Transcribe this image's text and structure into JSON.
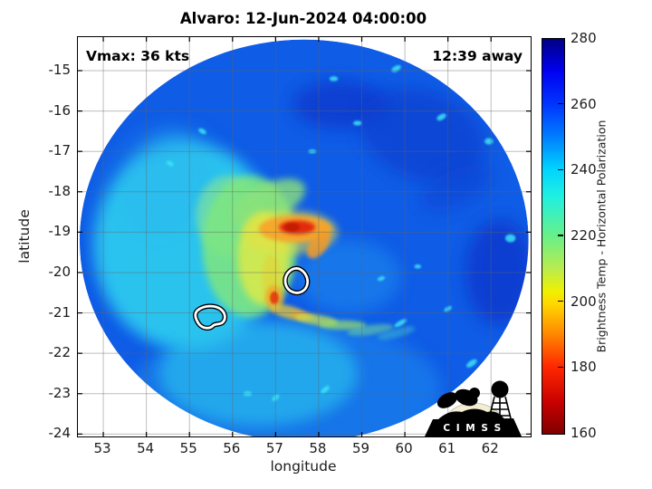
{
  "figure": {
    "title": "Alvaro: 12-Jun-2024 04:00:00"
  },
  "annotations": {
    "vmax": "Vmax: 36 kts",
    "eta": "12:39 away"
  },
  "logo": {
    "text": "C I M S S"
  },
  "chart_data": {
    "type": "heatmap",
    "title": "Alvaro: 12-Jun-2024 04:00:00",
    "xlabel": "longitude",
    "ylabel": "latitude",
    "xlim": [
      52.41,
      62.92
    ],
    "ylim": [
      -24.06,
      -14.17
    ],
    "xticks": [
      53,
      54,
      55,
      56,
      57,
      58,
      59,
      60,
      61,
      62
    ],
    "yticks": [
      -15,
      -16,
      -17,
      -18,
      -19,
      -20,
      -21,
      -22,
      -23,
      -24
    ],
    "grid": true,
    "colorbar": {
      "label": "Brightness Temp - Horizontal Polarization",
      "min": 160,
      "max": 280,
      "ticks": [
        160,
        180,
        200,
        220,
        240,
        260,
        280
      ],
      "stops": [
        {
          "pos": 0.0,
          "color": "#000083"
        },
        {
          "pos": 0.08,
          "color": "#0000f0"
        },
        {
          "pos": 0.17,
          "color": "#0038ff"
        },
        {
          "pos": 0.25,
          "color": "#0080ff"
        },
        {
          "pos": 0.33,
          "color": "#00d4ff"
        },
        {
          "pos": 0.4,
          "color": "#20f0e0"
        },
        {
          "pos": 0.5,
          "color": "#68f088"
        },
        {
          "pos": 0.58,
          "color": "#b8ec50"
        },
        {
          "pos": 0.64,
          "color": "#f0f000"
        },
        {
          "pos": 0.67,
          "color": "#ffd800"
        },
        {
          "pos": 0.74,
          "color": "#ff9000"
        },
        {
          "pos": 0.83,
          "color": "#ff2800"
        },
        {
          "pos": 0.92,
          "color": "#c80000"
        },
        {
          "pos": 1.0,
          "color": "#800000"
        }
      ]
    },
    "swath": {
      "center_lon": 57.66,
      "center_lat": -19.21,
      "radius_lon_deg": 5.21,
      "radius_lat_deg": 4.98,
      "base_color": "#0f5ce6"
    },
    "features": [
      {
        "name": "light-blue-bottom",
        "lon": 57.25,
        "lat": -22.9,
        "rx": 3.6,
        "ry": 1.7,
        "rot": 0,
        "color": "#1e86ec",
        "opacity": 0.6,
        "blur": 8
      },
      {
        "name": "light-blue-left",
        "lon": 54.6,
        "lat": -19.0,
        "rx": 1.9,
        "ry": 2.7,
        "rot": 0,
        "color": "#1d80ea",
        "opacity": 0.5,
        "blur": 8
      },
      {
        "name": "light-blue-right-of-center",
        "lon": 58.7,
        "lat": -20.1,
        "rx": 1.2,
        "ry": 0.9,
        "rot": 0,
        "color": "#1e8cee",
        "opacity": 0.55,
        "blur": 8
      },
      {
        "name": "navy-top-center",
        "lon": 58.5,
        "lat": -15.85,
        "rx": 1.1,
        "ry": 0.6,
        "rot": 0,
        "color": "#0836ca",
        "opacity": 0.7,
        "blur": 8
      },
      {
        "name": "navy-top-right",
        "lon": 60.4,
        "lat": -16.6,
        "rx": 1.5,
        "ry": 1.1,
        "rot": 20,
        "color": "#0a3cce",
        "opacity": 0.65,
        "blur": 8
      },
      {
        "name": "navy-right-edge",
        "lon": 62.2,
        "lat": -20.0,
        "rx": 0.8,
        "ry": 1.3,
        "rot": 0,
        "color": "#0836ca",
        "opacity": 0.75,
        "blur": 8
      },
      {
        "name": "navy-streak-ne",
        "lon": 61.2,
        "lat": -17.9,
        "rx": 0.9,
        "ry": 0.45,
        "rot": -25,
        "color": "#0b40d0",
        "opacity": 0.5,
        "blur": 8
      },
      {
        "name": "cyan-mass-west",
        "lon": 54.95,
        "lat": -19.35,
        "rx": 2.15,
        "ry": 2.55,
        "rot": 0,
        "color": "#2fd2f0",
        "opacity": 0.85,
        "blur": 8
      },
      {
        "name": "cyan-south",
        "lon": 56.6,
        "lat": -22.5,
        "rx": 2.3,
        "ry": 1.3,
        "rot": 0,
        "color": "#2cc2ee",
        "opacity": 0.65,
        "blur": 8
      },
      {
        "name": "cyan-north-arm",
        "lon": 54.45,
        "lat": -17.8,
        "rx": 0.95,
        "ry": 1.3,
        "rot": 25,
        "color": "#2ab8ee",
        "opacity": 0.5,
        "blur": 8
      },
      {
        "name": "pale-green-nw",
        "lon": 55.9,
        "lat": -18.6,
        "rx": 0.75,
        "ry": 1.0,
        "rot": 0,
        "color": "#8fe88f",
        "opacity": 0.6,
        "blur": 4
      },
      {
        "name": "green-comma",
        "lon": 56.4,
        "lat": -19.35,
        "rx": 1.1,
        "ry": 1.75,
        "rot": 0,
        "color": "#7fe67e",
        "opacity": 0.85,
        "blur": 4
      },
      {
        "name": "green-comma-top-arm",
        "lon": 56.85,
        "lat": -18.25,
        "rx": 0.9,
        "ry": 0.45,
        "rot": -25,
        "color": "#8ce27a",
        "opacity": 0.8,
        "blur": 4
      },
      {
        "name": "yellow-comma-core",
        "lon": 56.72,
        "lat": -19.65,
        "rx": 0.6,
        "ry": 1.15,
        "rot": 0,
        "color": "#dcea48",
        "opacity": 0.85,
        "blur": 4
      },
      {
        "name": "yellow-streak-south",
        "lon": 56.9,
        "lat": -20.1,
        "rx": 0.22,
        "ry": 0.55,
        "rot": 0,
        "color": "#ddd83e",
        "opacity": 0.8,
        "blur": 2
      },
      {
        "name": "yellow-halo-core",
        "lon": 57.35,
        "lat": -19.0,
        "rx": 1.1,
        "ry": 0.55,
        "rot": 0,
        "color": "#e8e040",
        "opacity": 0.55,
        "blur": 4
      },
      {
        "name": "orange-band",
        "lon": 57.46,
        "lat": -18.92,
        "rx": 0.85,
        "ry": 0.34,
        "rot": 0,
        "color": "#f7a62b",
        "opacity": 0.95,
        "blur": 2
      },
      {
        "name": "red-core",
        "lon": 57.5,
        "lat": -18.88,
        "rx": 0.42,
        "ry": 0.17,
        "rot": 0,
        "color": "#e3290e",
        "opacity": 1,
        "blur": 2
      },
      {
        "name": "red-core-dark",
        "lon": 57.38,
        "lat": -18.88,
        "rx": 0.18,
        "ry": 0.11,
        "rot": 0,
        "color": "#c21f00",
        "opacity": 0.9,
        "blur": 1
      },
      {
        "name": "orange-tail-east",
        "lon": 58.0,
        "lat": -19.3,
        "rx": 0.2,
        "ry": 0.4,
        "rot": 35,
        "color": "#f49b28",
        "opacity": 0.85,
        "blur": 2
      },
      {
        "name": "orange-dot-halo",
        "lon": 56.97,
        "lat": -20.63,
        "rx": 0.22,
        "ry": 0.32,
        "rot": 0,
        "color": "#f0a428",
        "opacity": 0.75,
        "blur": 2
      },
      {
        "name": "orange-dot",
        "lon": 56.97,
        "lat": -20.63,
        "rx": 0.1,
        "ry": 0.16,
        "rot": 0,
        "color": "#e8430e",
        "opacity": 1,
        "blur": 1
      },
      {
        "name": "band-arc-1",
        "lon": 57.3,
        "lat": -20.98,
        "rx": 0.45,
        "ry": 0.16,
        "rot": 15,
        "color": "#e0c23c",
        "opacity": 0.8,
        "blur": 2
      },
      {
        "name": "band-arc-orange",
        "lon": 57.63,
        "lat": -21.07,
        "rx": 0.28,
        "ry": 0.1,
        "rot": 10,
        "color": "#f0a030",
        "opacity": 0.8,
        "blur": 2
      },
      {
        "name": "band-arc-2",
        "lon": 57.95,
        "lat": -21.17,
        "rx": 0.5,
        "ry": 0.13,
        "rot": 8,
        "color": "#c4e052",
        "opacity": 0.75,
        "blur": 2
      },
      {
        "name": "band-arc-3",
        "lon": 58.55,
        "lat": -21.3,
        "rx": 0.55,
        "ry": 0.12,
        "rot": 0,
        "color": "#9ade6a",
        "opacity": 0.7,
        "blur": 2
      },
      {
        "name": "band-arc-4",
        "lon": 59.2,
        "lat": -21.42,
        "rx": 0.55,
        "ry": 0.12,
        "rot": -8,
        "color": "#6cd0a0",
        "opacity": 0.6,
        "blur": 2
      },
      {
        "name": "band-arc-5",
        "lon": 59.8,
        "lat": -21.5,
        "rx": 0.45,
        "ry": 0.11,
        "rot": -15,
        "color": "#40c0d0",
        "opacity": 0.5,
        "blur": 2
      }
    ],
    "speckle_color": "#3ce4f4",
    "speckles": [
      {
        "lon": 59.8,
        "lat": -14.95,
        "rx": 0.12,
        "ry": 0.07,
        "rot": -30
      },
      {
        "lon": 58.35,
        "lat": -15.2,
        "rx": 0.1,
        "ry": 0.06,
        "rot": 0
      },
      {
        "lon": 60.85,
        "lat": -16.15,
        "rx": 0.12,
        "ry": 0.07,
        "rot": -30
      },
      {
        "lon": 61.95,
        "lat": -16.75,
        "rx": 0.1,
        "ry": 0.08,
        "rot": 0
      },
      {
        "lon": 62.45,
        "lat": -19.15,
        "rx": 0.12,
        "ry": 0.1,
        "rot": 0
      },
      {
        "lon": 61.55,
        "lat": -22.25,
        "rx": 0.14,
        "ry": 0.07,
        "rot": -35
      },
      {
        "lon": 59.9,
        "lat": -21.25,
        "rx": 0.16,
        "ry": 0.06,
        "rot": -30
      },
      {
        "lon": 58.15,
        "lat": -22.9,
        "rx": 0.12,
        "ry": 0.06,
        "rot": -40
      },
      {
        "lon": 57.0,
        "lat": -23.1,
        "rx": 0.1,
        "ry": 0.06,
        "rot": -40
      },
      {
        "lon": 56.35,
        "lat": -23.0,
        "rx": 0.1,
        "ry": 0.06,
        "rot": 0
      },
      {
        "lon": 55.3,
        "lat": -16.5,
        "rx": 0.1,
        "ry": 0.06,
        "rot": 30
      },
      {
        "lon": 54.55,
        "lat": -17.3,
        "rx": 0.09,
        "ry": 0.06,
        "rot": 30
      },
      {
        "lon": 58.9,
        "lat": -16.3,
        "rx": 0.1,
        "ry": 0.06,
        "rot": 0
      },
      {
        "lon": 57.85,
        "lat": -17.0,
        "rx": 0.09,
        "ry": 0.05,
        "rot": 0
      },
      {
        "lon": 60.3,
        "lat": -19.85,
        "rx": 0.08,
        "ry": 0.05,
        "rot": 0
      },
      {
        "lon": 61.0,
        "lat": -20.9,
        "rx": 0.1,
        "ry": 0.05,
        "rot": -30
      },
      {
        "lon": 59.45,
        "lat": -20.15,
        "rx": 0.09,
        "ry": 0.05,
        "rot": -20
      }
    ],
    "center_fixes": [
      {
        "lon": 57.5,
        "lat": -20.22,
        "shape": "a"
      },
      {
        "lon": 55.5,
        "lat": -21.12,
        "shape": "b"
      }
    ]
  }
}
